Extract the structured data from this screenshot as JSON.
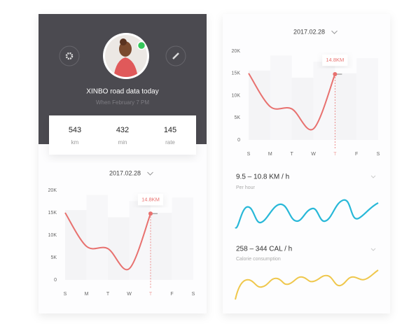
{
  "header": {
    "name": "XINBO road data today",
    "subtitle": "When February 7 PM"
  },
  "stats": [
    {
      "value": 543,
      "label": "km"
    },
    {
      "value": 432,
      "label": "min"
    },
    {
      "value": 145,
      "label": "rate"
    }
  ],
  "chart_data": [
    {
      "type": "line",
      "date": "2017.02.28",
      "annotation": "14.8KM",
      "categories": [
        "S",
        "M",
        "T",
        "W",
        "T",
        "F",
        "S"
      ],
      "series": [
        {
          "color": "#e8716f",
          "values": [
            15000,
            7500,
            7000,
            2500,
            14800,
            null,
            null
          ]
        }
      ],
      "ylim": [
        0,
        20000
      ],
      "yticks": [
        0,
        {
          "value": 5000,
          "label": "5K"
        },
        {
          "value": 10000,
          "label": "10K"
        },
        {
          "value": 15000,
          "label": "15K"
        },
        {
          "value": 20000,
          "label": "20K"
        }
      ]
    },
    {
      "type": "line",
      "date": "2017.02.28",
      "annotation": "14.8KM",
      "categories": [
        "S",
        "M",
        "T",
        "W",
        "T",
        "F",
        "S"
      ],
      "series": [
        {
          "color": "#e8716f",
          "values": [
            15000,
            7500,
            7000,
            2500,
            14800,
            null,
            null
          ]
        }
      ],
      "ylim": [
        0,
        20000
      ],
      "yticks": [
        0,
        {
          "value": 5000,
          "label": "5K"
        },
        {
          "value": 10000,
          "label": "10K"
        },
        {
          "value": 15000,
          "label": "15K"
        },
        {
          "value": 20000,
          "label": "20K"
        }
      ]
    }
  ],
  "metrics": [
    {
      "title": "9.5 – 10.8 KM / h",
      "subtitle": "Per hour"
    },
    {
      "title": "258 – 344 CAL / h",
      "subtitle": "Calorie consumption"
    }
  ]
}
